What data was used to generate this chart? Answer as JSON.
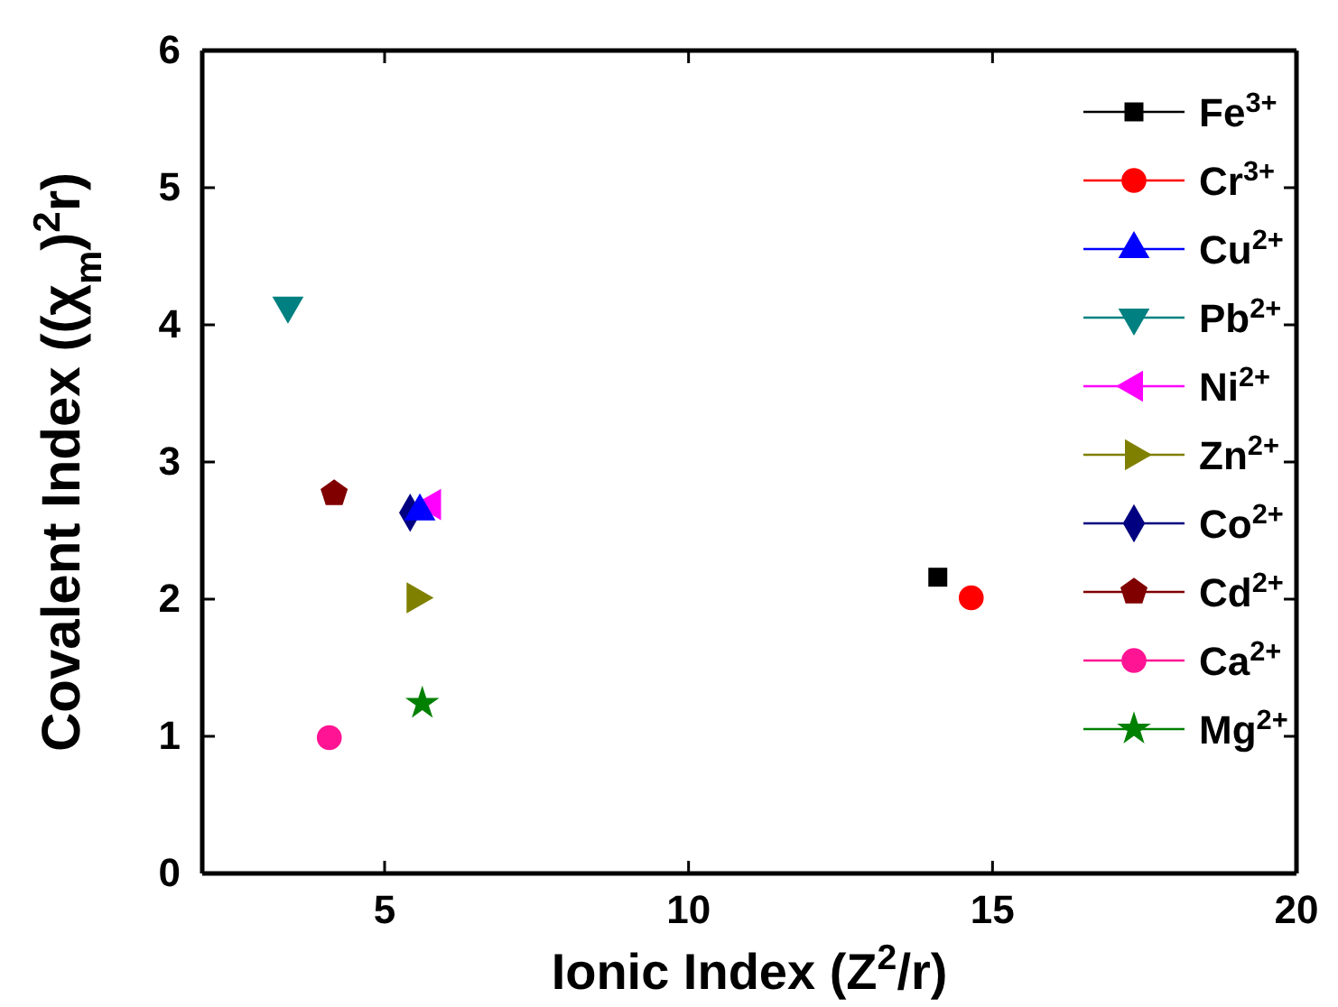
{
  "chart_data": {
    "type": "scatter",
    "xlabel": "Ionic Index (Z$^{2}$/r)",
    "ylabel": "Covalent Index ((χ$_{m}$)$^{2}$r)",
    "xlim": [
      2,
      20
    ],
    "xticks": [
      5,
      10,
      15,
      20
    ],
    "ylim": [
      0,
      6
    ],
    "yticks": [
      0,
      1,
      2,
      3,
      4,
      5,
      6
    ],
    "grid": false,
    "legend": "top right",
    "series": [
      {
        "name": "Fe$^{3+}$",
        "color": "#000000",
        "marker": "square",
        "x": [
          14.1
        ],
        "values": [
          2.16
        ]
      },
      {
        "name": "Cr$^{3+}$",
        "color": "#ff0000",
        "marker": "circle",
        "x": [
          14.65
        ],
        "values": [
          2.01
        ]
      },
      {
        "name": "Cu$^{2+}$",
        "color": "#0000ff",
        "marker": "triangle",
        "x": [
          5.58
        ],
        "values": [
          2.64
        ]
      },
      {
        "name": "Pb$^{2+}$",
        "color": "#008080",
        "marker": "triangle-down",
        "x": [
          3.41
        ],
        "values": [
          4.14
        ]
      },
      {
        "name": "Ni$^{2+}$",
        "color": "#ff00ff",
        "marker": "triangle-left",
        "x": [
          5.78
        ],
        "values": [
          2.69
        ]
      },
      {
        "name": "Zn$^{2+}$",
        "color": "#808000",
        "marker": "triangle-right",
        "x": [
          5.51
        ],
        "values": [
          2.01
        ]
      },
      {
        "name": "Co$^{2+}$",
        "color": "#000080",
        "marker": "diamond",
        "x": [
          5.42
        ],
        "values": [
          2.63
        ]
      },
      {
        "name": "Cd$^{2+}$",
        "color": "#800000",
        "x": [
          4.17
        ],
        "values": [
          2.77
        ]
      },
      {
        "name": "Ca$^{2+}$",
        "color": "#ff1493",
        "marker": "circle",
        "x": [
          4.09
        ],
        "values": [
          0.99
        ]
      },
      {
        "name": "Mg$^{2+}$",
        "color": "#008000",
        "marker": "star",
        "x": [
          5.62
        ],
        "values": [
          1.24
        ]
      }
    ]
  }
}
